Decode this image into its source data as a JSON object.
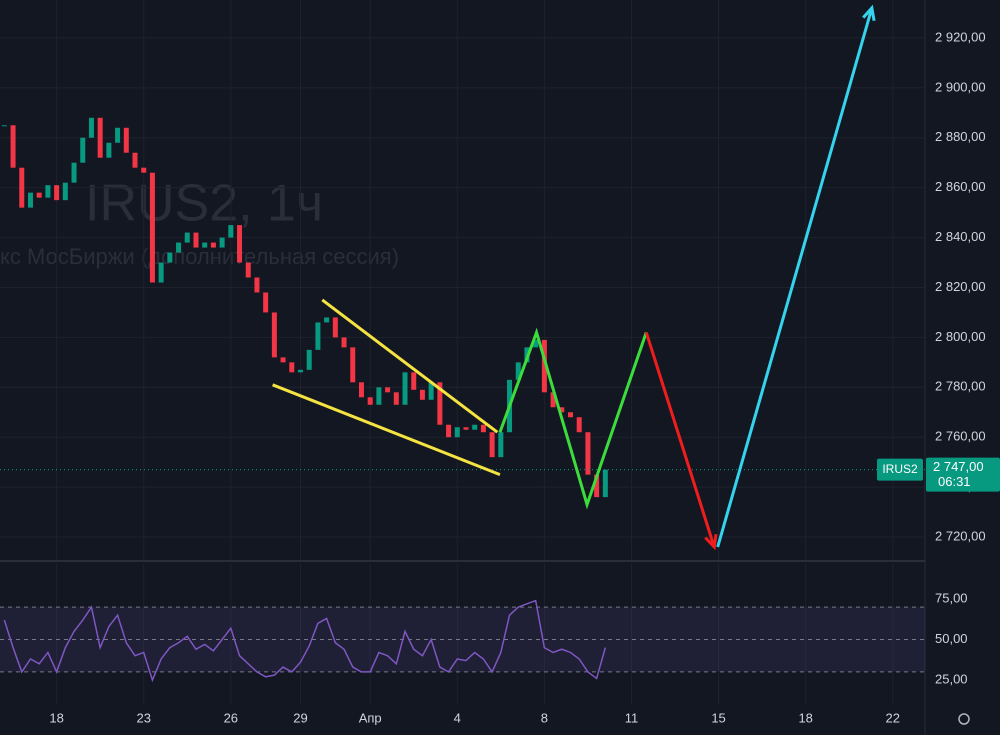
{
  "chart_data": [
    {
      "type": "candle",
      "watermark": "IRUS2, 1ч",
      "watermark_sub": "кс МосБиржи (дополнительная сессия)",
      "x": [
        -6,
        -5,
        -4,
        -3,
        -2,
        -1,
        0,
        1,
        2,
        3,
        4,
        5,
        6,
        7,
        8,
        9,
        10,
        11,
        12,
        13,
        14,
        15,
        16,
        17,
        18,
        19,
        20,
        21,
        22,
        23,
        24,
        25,
        26,
        27,
        28,
        29,
        30,
        31,
        32,
        33,
        34,
        35,
        36,
        37,
        38,
        39,
        40,
        41,
        42,
        43,
        44,
        45,
        46,
        47,
        48,
        49,
        50,
        51,
        52,
        53,
        54,
        55,
        56,
        57,
        58,
        59,
        60,
        61,
        62,
        63
      ],
      "series": [
        {
          "name": "IRUS2",
          "up_color": "#089981",
          "down_color": "#f23645",
          "values": [
            2885,
            2868,
            2852,
            2858,
            2856,
            2861,
            2855,
            2862,
            2870,
            2880,
            2888,
            2872,
            2878,
            2884,
            2874,
            2868,
            2866,
            2822,
            2830,
            2834,
            2838,
            2842,
            2836,
            2838,
            2836,
            2840,
            2845,
            2830,
            2824,
            2818,
            2810,
            2792,
            2790,
            2786,
            2787,
            2795,
            2806,
            2808,
            2800,
            2796,
            2782,
            2776,
            2773,
            2780,
            2778,
            2773,
            2786,
            2779,
            2775,
            2782,
            2765,
            2760,
            2764,
            2763,
            2765,
            2762,
            2752,
            2762,
            2783,
            2790,
            2796,
            2799,
            2778,
            2772,
            2770,
            2768,
            2762,
            2745,
            2736,
            2747
          ]
        }
      ],
      "last": {
        "value": 2747,
        "label": "2 747,00",
        "countdown": "06:31",
        "color": "#089981"
      },
      "drawings": [
        {
          "color": "#f5e342",
          "points": [
            [
              30.5,
              2815
            ],
            [
              50.6,
              2762
            ]
          ]
        },
        {
          "color": "#f5e342",
          "points": [
            [
              24.8,
              2781
            ],
            [
              50.9,
              2745
            ]
          ]
        },
        {
          "color": "#3ddc3d",
          "points": [
            [
              50.9,
              2762
            ],
            [
              55.1,
              2802
            ],
            [
              60.9,
              2733
            ],
            [
              67.7,
              2802
            ]
          ]
        },
        {
          "color": "#f01d1d",
          "points": [
            [
              67.7,
              2802
            ],
            [
              75.5,
              2716
            ]
          ],
          "arrow": true
        },
        {
          "color": "#35d3ee",
          "points": [
            [
              75.9,
              2716
            ],
            [
              93.6,
              2932
            ]
          ],
          "arrow": true
        }
      ],
      "xlim": [
        -6.5,
        99.7
      ],
      "xticks": [
        {
          "value": 0,
          "label": "18"
        },
        {
          "value": 10,
          "label": "23"
        },
        {
          "value": 20,
          "label": "26"
        },
        {
          "value": 28,
          "label": "29"
        },
        {
          "value": 36,
          "label": "Апр"
        },
        {
          "value": 46,
          "label": "4"
        },
        {
          "value": 56,
          "label": "8"
        },
        {
          "value": 66,
          "label": "11"
        },
        {
          "value": 76,
          "label": "15"
        },
        {
          "value": 86,
          "label": "18"
        },
        {
          "value": 96,
          "label": "22"
        }
      ],
      "ylim": [
        2710.8,
        2935.2
      ],
      "yticks": [
        {
          "value": 2720,
          "label": "2 720,00"
        },
        {
          "value": 2740,
          "label": "2 740,00"
        },
        {
          "value": 2760,
          "label": "2 760,00"
        },
        {
          "value": 2780,
          "label": "2 780,00"
        },
        {
          "value": 2800,
          "label": "2 800,00"
        },
        {
          "value": 2820,
          "label": "2 820,00"
        },
        {
          "value": 2840,
          "label": "2 840,00"
        },
        {
          "value": 2860,
          "label": "2 860,00"
        },
        {
          "value": 2880,
          "label": "2 880,00"
        },
        {
          "value": 2900,
          "label": "2 900,00"
        },
        {
          "value": 2920,
          "label": "2 920,00"
        }
      ],
      "grid": true
    },
    {
      "type": "line",
      "series": [
        {
          "color": "#7e57c2",
          "values": [
            62,
            45,
            30,
            38,
            35,
            42,
            30,
            45,
            55,
            62,
            70,
            45,
            58,
            65,
            48,
            40,
            42,
            25,
            38,
            45,
            48,
            52,
            44,
            47,
            43,
            50,
            57,
            40,
            35,
            30,
            27,
            28,
            33,
            30,
            36,
            46,
            60,
            63,
            48,
            44,
            33,
            30,
            30,
            42,
            40,
            35,
            55,
            44,
            40,
            50,
            33,
            30,
            38,
            37,
            42,
            38,
            30,
            42,
            65,
            70,
            72,
            74,
            45,
            42,
            44,
            42,
            38,
            30,
            26,
            45
          ]
        }
      ],
      "hlines": [
        70,
        50,
        30
      ],
      "band": [
        30,
        70
      ],
      "ylim": [
        9.6,
        97.2
      ],
      "yticks": [
        {
          "value": 25,
          "label": "25,00"
        },
        {
          "value": 50,
          "label": "50,00"
        },
        {
          "value": 75,
          "label": "75,00"
        }
      ]
    }
  ]
}
